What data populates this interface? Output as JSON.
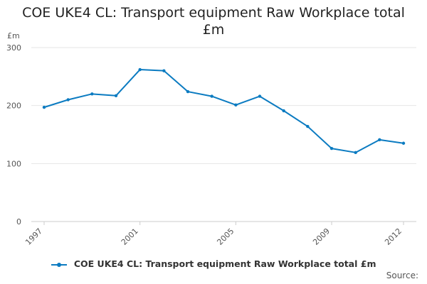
{
  "chart_data": {
    "type": "line",
    "title_lines": [
      "COE UKE4 CL: Transport equipment Raw Workplace total",
      "£m"
    ],
    "y_unit_label": "£m",
    "xlabel": "",
    "ylabel": "",
    "ylim": [
      0,
      300
    ],
    "y_ticks": [
      0,
      100,
      200,
      300
    ],
    "x_tick_labels": [
      "1997",
      "2001",
      "2005",
      "2009",
      "2012"
    ],
    "grid": true,
    "legend_position": "bottom",
    "series": [
      {
        "name": "COE UKE4 CL: Transport equipment Raw Workplace total £m",
        "color": "#0b7bc1",
        "x": [
          1997,
          1998,
          1999,
          2000,
          2001,
          2002,
          2003,
          2004,
          2005,
          2006,
          2007,
          2008,
          2009,
          2010,
          2011,
          2012
        ],
        "values": [
          197,
          210,
          220,
          217,
          262,
          260,
          224,
          216,
          201,
          216,
          191,
          164,
          126,
          119,
          141,
          135
        ]
      }
    ]
  },
  "source_label": "Source:"
}
